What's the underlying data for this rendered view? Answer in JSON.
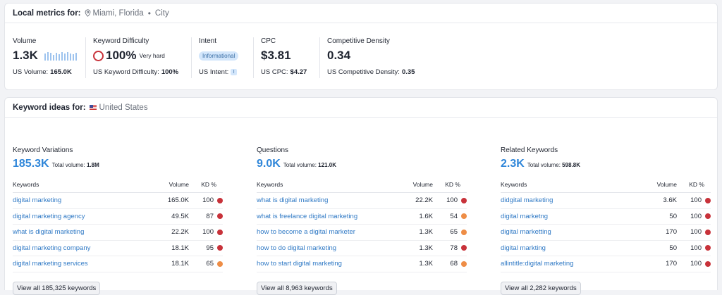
{
  "local": {
    "title": "Local metrics for:",
    "location": "Miami, Florida",
    "type": "City",
    "metrics": {
      "volume": {
        "label": "Volume",
        "value": "1.3K",
        "sub_label": "US Volume:",
        "sub_value": "165.0K"
      },
      "kd": {
        "label": "Keyword Difficulty",
        "value": "100%",
        "note": "Very hard",
        "sub_label": "US Keyword Difficulty:",
        "sub_value": "100%"
      },
      "intent": {
        "label": "Intent",
        "badge": "Informational",
        "sub_label": "US Intent:",
        "sub_badge": "I"
      },
      "cpc": {
        "label": "CPC",
        "value": "$3.81",
        "sub_label": "US CPC:",
        "sub_value": "$4.27"
      },
      "density": {
        "label": "Competitive Density",
        "value": "0.34",
        "sub_label": "US Competitive Density:",
        "sub_value": "0.35"
      }
    },
    "volume_trend": [
      0.75,
      0.9,
      0.85,
      0.6,
      0.85,
      0.7,
      0.9,
      0.75,
      0.95,
      0.8,
      0.7,
      0.85
    ]
  },
  "ideas": {
    "title": "Keyword ideas for:",
    "country": "United States",
    "headers": {
      "keywords": "Keywords",
      "volume": "Volume",
      "kd": "KD %"
    },
    "total_label": "Total volume:",
    "colors": {
      "hard": "#c8323a",
      "medium": "#ee8d46"
    },
    "columns": [
      {
        "title": "Keyword Variations",
        "count": "185.3K",
        "total": "1.8M",
        "button": "View all 185,325 keywords",
        "rows": [
          {
            "kw": "digital marketing",
            "vol": "165.0K",
            "kd": "100",
            "level": "hard"
          },
          {
            "kw": "digital marketing agency",
            "vol": "49.5K",
            "kd": "87",
            "level": "hard"
          },
          {
            "kw": "what is digital marketing",
            "vol": "22.2K",
            "kd": "100",
            "level": "hard"
          },
          {
            "kw": "digital marketing company",
            "vol": "18.1K",
            "kd": "95",
            "level": "hard"
          },
          {
            "kw": "digital marketing services",
            "vol": "18.1K",
            "kd": "65",
            "level": "medium"
          }
        ]
      },
      {
        "title": "Questions",
        "count": "9.0K",
        "total": "121.0K",
        "button": "View all 8,963 keywords",
        "rows": [
          {
            "kw": "what is digital marketing",
            "vol": "22.2K",
            "kd": "100",
            "level": "hard"
          },
          {
            "kw": "what is freelance digital marketing",
            "vol": "1.6K",
            "kd": "54",
            "level": "medium"
          },
          {
            "kw": "how to become a digital marketer",
            "vol": "1.3K",
            "kd": "65",
            "level": "medium"
          },
          {
            "kw": "how to do digital marketing",
            "vol": "1.3K",
            "kd": "78",
            "level": "hard"
          },
          {
            "kw": "how to start digital marketing",
            "vol": "1.3K",
            "kd": "68",
            "level": "medium"
          }
        ]
      },
      {
        "title": "Related Keywords",
        "count": "2.3K",
        "total": "598.8K",
        "button": "View all 2,282 keywords",
        "rows": [
          {
            "kw": "didgital marketing",
            "vol": "3.6K",
            "kd": "100",
            "level": "hard"
          },
          {
            "kw": "digital marketng",
            "vol": "50",
            "kd": "100",
            "level": "hard"
          },
          {
            "kw": "digital marketting",
            "vol": "170",
            "kd": "100",
            "level": "hard"
          },
          {
            "kw": "digital markting",
            "vol": "50",
            "kd": "100",
            "level": "hard"
          },
          {
            "kw": "allintitle:digital marketing",
            "vol": "170",
            "kd": "100",
            "level": "hard"
          }
        ]
      }
    ]
  }
}
